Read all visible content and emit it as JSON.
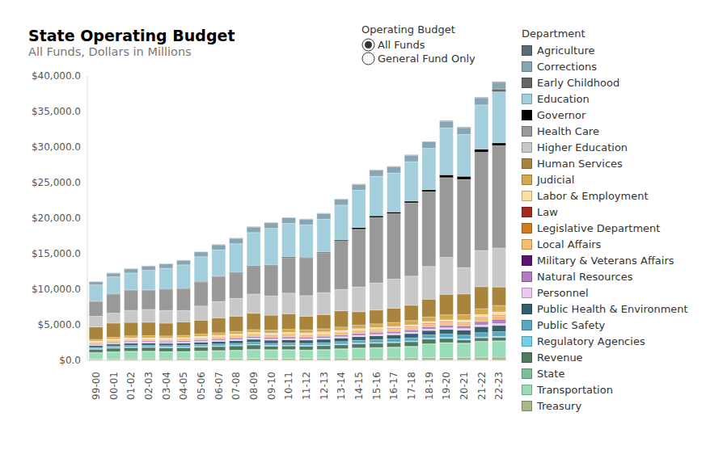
{
  "chart_data": {
    "type": "bar",
    "title": "State Operating Budget",
    "subtitle": "All Funds, Dollars in Millions",
    "stacked": true,
    "grid": false,
    "legend": "right",
    "legend_title": "Department",
    "selector": {
      "title": "Operating Budget",
      "options": [
        "All Funds",
        "General Fund Only"
      ],
      "selected": "All Funds"
    },
    "categories": [
      "99-00",
      "00-01",
      "01-02",
      "02-03",
      "03-04",
      "04-05",
      "05-06",
      "06-07",
      "07-08",
      "08-09",
      "09-10",
      "10-11",
      "11-12",
      "12-13",
      "13-14",
      "14-15",
      "15-16",
      "16-17",
      "17-18",
      "18-19",
      "19-20",
      "20-21",
      "21-22",
      "22-23"
    ],
    "ylim": [
      0,
      40000
    ],
    "yticks": [
      {
        "value": 0,
        "label": "$0.0"
      },
      {
        "value": 5000,
        "label": "$5,000.0"
      },
      {
        "value": 10000,
        "label": "$10,000.0"
      },
      {
        "value": 15000,
        "label": "$15,000.0"
      },
      {
        "value": 20000,
        "label": "$20,000.0"
      },
      {
        "value": 25000,
        "label": "$25,000.0"
      },
      {
        "value": 30000,
        "label": "$30,000.0"
      },
      {
        "value": 35000,
        "label": "$35,000.0"
      },
      {
        "value": 40000,
        "label": "$40,000.0"
      }
    ],
    "series": [
      {
        "name": "Agriculture",
        "color": "#5a6b73",
        "values": [
          30,
          35,
          38,
          38,
          38,
          38,
          40,
          42,
          44,
          46,
          46,
          48,
          48,
          50,
          52,
          55,
          58,
          60,
          62,
          65,
          70,
          72,
          75,
          80
        ]
      },
      {
        "name": "Corrections",
        "color": "#86a6b3",
        "values": [
          470,
          520,
          580,
          600,
          620,
          640,
          680,
          720,
          760,
          780,
          790,
          800,
          790,
          800,
          820,
          830,
          850,
          880,
          900,
          920,
          950,
          950,
          1000,
          950
        ]
      },
      {
        "name": "Early Childhood",
        "color": "#666666",
        "values": [
          0,
          0,
          0,
          0,
          0,
          0,
          0,
          0,
          0,
          0,
          0,
          0,
          0,
          0,
          0,
          0,
          0,
          0,
          0,
          0,
          0,
          0,
          0,
          400
        ]
      },
      {
        "name": "Education",
        "color": "#a3cfdd",
        "values": [
          2250,
          2350,
          2390,
          2740,
          2860,
          3250,
          3470,
          3690,
          4010,
          4670,
          5120,
          4700,
          4560,
          4610,
          4900,
          5230,
          5560,
          5480,
          5550,
          5810,
          6590,
          5890,
          6210,
          7170
        ]
      },
      {
        "name": "Governor",
        "color": "#000000",
        "values": [
          50,
          60,
          60,
          60,
          60,
          60,
          60,
          70,
          70,
          80,
          90,
          100,
          100,
          100,
          150,
          250,
          250,
          250,
          250,
          300,
          400,
          450,
          450,
          400
        ]
      },
      {
        "name": "Health Care",
        "color": "#999999",
        "values": [
          2100,
          2700,
          2800,
          2700,
          3000,
          3100,
          3400,
          3500,
          3600,
          3900,
          4300,
          5000,
          5300,
          5600,
          6800,
          8100,
          9200,
          9200,
          10300,
          10500,
          11200,
          12400,
          13800,
          14400
        ]
      },
      {
        "name": "Higher Education",
        "color": "#c8c8c8",
        "values": [
          1500,
          1400,
          1700,
          1800,
          1800,
          1600,
          2000,
          2300,
          2500,
          2700,
          2700,
          2900,
          2900,
          3100,
          3000,
          3500,
          3800,
          4100,
          4100,
          4600,
          5200,
          3700,
          5100,
          5480
        ]
      },
      {
        "name": "Human Services",
        "color": "#a8843c",
        "values": [
          1750,
          2000,
          1900,
          1900,
          1800,
          1900,
          1950,
          2100,
          2150,
          2300,
          2100,
          2200,
          1900,
          2000,
          2300,
          1900,
          1950,
          2000,
          2150,
          2500,
          2900,
          2900,
          3100,
          2600
        ]
      },
      {
        "name": "Judicial",
        "color": "#d4a84f",
        "values": [
          235,
          250,
          270,
          280,
          290,
          300,
          320,
          340,
          370,
          400,
          420,
          430,
          430,
          440,
          460,
          480,
          520,
          560,
          600,
          640,
          700,
          760,
          820,
          900
        ]
      },
      {
        "name": "Labor & Employment",
        "color": "#f8e0a0",
        "values": [
          130,
          140,
          150,
          150,
          150,
          155,
          160,
          160,
          165,
          170,
          175,
          180,
          180,
          185,
          190,
          200,
          210,
          220,
          230,
          240,
          250,
          300,
          350,
          400
        ]
      },
      {
        "name": "Law",
        "color": "#a52a1e",
        "values": [
          30,
          32,
          34,
          34,
          35,
          36,
          38,
          40,
          42,
          45,
          48,
          52,
          55,
          58,
          62,
          68,
          74,
          78,
          82,
          86,
          90,
          96,
          102,
          110
        ]
      },
      {
        "name": "Legislative Department",
        "color": "#d27a1e",
        "values": [
          25,
          27,
          28,
          28,
          28,
          29,
          30,
          31,
          32,
          34,
          34,
          35,
          35,
          36,
          38,
          40,
          42,
          44,
          46,
          48,
          50,
          52,
          55,
          60
        ]
      },
      {
        "name": "Local Affairs",
        "color": "#f7bd6b",
        "values": [
          150,
          180,
          200,
          200,
          200,
          210,
          220,
          240,
          260,
          280,
          300,
          320,
          300,
          300,
          310,
          320,
          310,
          310,
          320,
          330,
          340,
          350,
          450,
          500
        ]
      },
      {
        "name": "Military & Veterans Affairs",
        "color": "#5b1273",
        "values": [
          10,
          10,
          12,
          12,
          12,
          15,
          15,
          15,
          18,
          18,
          20,
          20,
          20,
          22,
          22,
          22,
          25,
          25,
          25,
          25,
          30,
          40,
          100,
          150
        ]
      },
      {
        "name": "Natural Resources",
        "color": "#b07cc0",
        "values": [
          170,
          180,
          190,
          190,
          190,
          200,
          210,
          220,
          230,
          240,
          250,
          250,
          250,
          260,
          270,
          280,
          290,
          300,
          310,
          330,
          350,
          360,
          400,
          420
        ]
      },
      {
        "name": "Personnel",
        "color": "#ecc8f2",
        "values": [
          110,
          120,
          130,
          130,
          130,
          140,
          150,
          160,
          165,
          170,
          170,
          175,
          175,
          180,
          185,
          190,
          195,
          200,
          205,
          210,
          220,
          230,
          240,
          250
        ]
      },
      {
        "name": "Public Health & Environment",
        "color": "#33606d",
        "values": [
          280,
          300,
          320,
          320,
          320,
          330,
          350,
          370,
          390,
          420,
          440,
          460,
          460,
          470,
          500,
          530,
          560,
          580,
          600,
          620,
          650,
          700,
          850,
          900
        ]
      },
      {
        "name": "Public Safety",
        "color": "#5ba6c0",
        "values": [
          180,
          200,
          220,
          220,
          220,
          230,
          250,
          260,
          270,
          290,
          300,
          310,
          310,
          320,
          350,
          380,
          400,
          420,
          450,
          470,
          500,
          550,
          600,
          650
        ]
      },
      {
        "name": "Regulatory Agencies",
        "color": "#6ed3ea",
        "values": [
          70,
          75,
          80,
          80,
          80,
          80,
          85,
          85,
          85,
          90,
          90,
          90,
          90,
          95,
          95,
          100,
          100,
          105,
          110,
          115,
          115,
          120,
          125,
          130
        ]
      },
      {
        "name": "Revenue",
        "color": "#4f7a60",
        "values": [
          450,
          500,
          520,
          530,
          530,
          540,
          560,
          580,
          600,
          620,
          500,
          520,
          530,
          550,
          560,
          580,
          600,
          620,
          640,
          660,
          600,
          460,
          480,
          500
        ]
      },
      {
        "name": "State",
        "color": "#7dbf98",
        "values": [
          60,
          60,
          60,
          60,
          60,
          60,
          60,
          65,
          65,
          65,
          65,
          65,
          65,
          65,
          65,
          65,
          65,
          65,
          65,
          50,
          50,
          50,
          50,
          50
        ]
      },
      {
        "name": "Transportation",
        "color": "#98ddb8",
        "values": [
          850,
          950,
          1000,
          1000,
          950,
          950,
          1000,
          1050,
          1100,
          1200,
          1150,
          1150,
          1100,
          1150,
          1250,
          1350,
          1400,
          1450,
          1550,
          1900,
          2050,
          1950,
          2200,
          2250
        ]
      },
      {
        "name": "Treasury",
        "color": "#a6b98a",
        "values": [
          200,
          210,
          220,
          230,
          230,
          240,
          250,
          260,
          270,
          280,
          290,
          300,
          300,
          310,
          320,
          330,
          340,
          350,
          360,
          380,
          400,
          420,
          440,
          450
        ]
      }
    ]
  }
}
